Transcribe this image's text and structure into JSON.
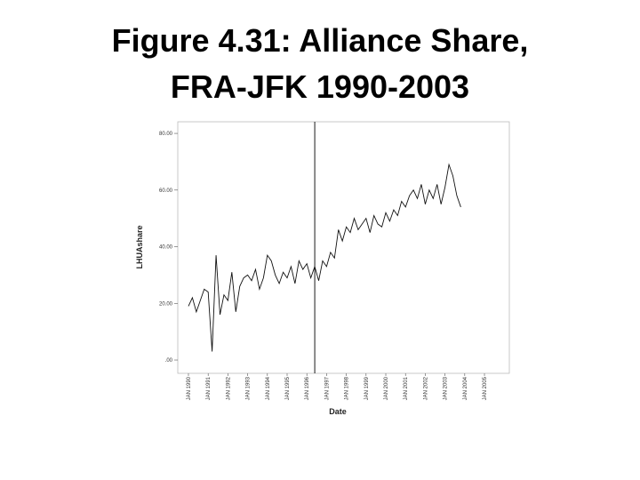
{
  "chart_data": {
    "type": "line",
    "title": "Figure 4.31: Alliance Share,",
    "subtitle": "FRA-JFK 1990-2003",
    "y_label": "LHUAshare",
    "x_label": "Date",
    "x": [
      1990.0,
      1990.2,
      1990.4,
      1990.6,
      1990.8,
      1991.0,
      1991.2,
      1991.4,
      1991.6,
      1991.8,
      1992.0,
      1992.2,
      1992.4,
      1992.6,
      1992.8,
      1993.0,
      1993.2,
      1993.4,
      1993.6,
      1993.8,
      1994.0,
      1994.2,
      1994.4,
      1994.6,
      1994.8,
      1995.0,
      1995.2,
      1995.4,
      1995.6,
      1995.8,
      1996.0,
      1996.2,
      1996.4,
      1996.6,
      1996.8,
      1997.0,
      1997.2,
      1997.4,
      1997.6,
      1997.8,
      1998.0,
      1998.2,
      1998.4,
      1998.6,
      1998.8,
      1999.0,
      1999.2,
      1999.4,
      1999.6,
      1999.8,
      2000.0,
      2000.2,
      2000.4,
      2000.6,
      2000.8,
      2001.0,
      2001.2,
      2001.4,
      2001.6,
      2001.8,
      2002.0,
      2002.2,
      2002.4,
      2002.6,
      2002.8,
      2003.0,
      2003.2,
      2003.4,
      2003.6,
      2003.8
    ],
    "series": [
      {
        "name": "LHUAshare",
        "color": "#111111",
        "values": [
          19,
          22,
          17,
          21,
          25,
          24,
          3,
          37,
          16,
          23,
          21,
          31,
          17,
          26,
          29,
          30,
          28,
          32,
          25,
          29,
          37,
          35,
          30,
          27,
          31,
          29,
          33,
          27,
          35,
          32,
          34,
          29,
          33,
          28,
          35,
          33,
          38,
          36,
          46,
          42,
          47,
          45,
          50,
          46,
          48,
          50,
          45,
          51,
          48,
          47,
          52,
          49,
          53,
          51,
          56,
          54,
          58,
          60,
          57,
          62,
          55,
          60,
          57,
          62,
          55,
          61,
          69,
          65,
          58,
          54
        ]
      }
    ],
    "reference_x": 1996.4,
    "xlim": [
      1989.46,
      2006.26
    ],
    "xticks": [
      {
        "value": 1990,
        "label": "JAN 1990"
      },
      {
        "value": 1991,
        "label": "JAN 1991"
      },
      {
        "value": 1992,
        "label": "JAN 1992"
      },
      {
        "value": 1993,
        "label": "JAN 1993"
      },
      {
        "value": 1994,
        "label": "JAN 1994"
      },
      {
        "value": 1995,
        "label": "JAN 1995"
      },
      {
        "value": 1996,
        "label": "JAN 1996"
      },
      {
        "value": 1997,
        "label": "JAN 1997"
      },
      {
        "value": 1998,
        "label": "JAN 1998"
      },
      {
        "value": 1999,
        "label": "JAN 1999"
      },
      {
        "value": 2000,
        "label": "JAN 2000"
      },
      {
        "value": 2001,
        "label": "JAN 2001"
      },
      {
        "value": 2002,
        "label": "JAN 2002"
      },
      {
        "value": 2003,
        "label": "JAN 2003"
      },
      {
        "value": 2004,
        "label": "JAN 2004"
      },
      {
        "value": 2005,
        "label": "JAN 2005"
      }
    ],
    "ylim": [
      -4.7,
      84.1
    ],
    "yticks": [
      {
        "value": 0,
        "label": ".00"
      },
      {
        "value": 20,
        "label": "20.00"
      },
      {
        "value": 40,
        "label": "40.00"
      },
      {
        "value": 60,
        "label": "60.00"
      },
      {
        "value": 80,
        "label": "80.00"
      }
    ],
    "grid": false
  }
}
